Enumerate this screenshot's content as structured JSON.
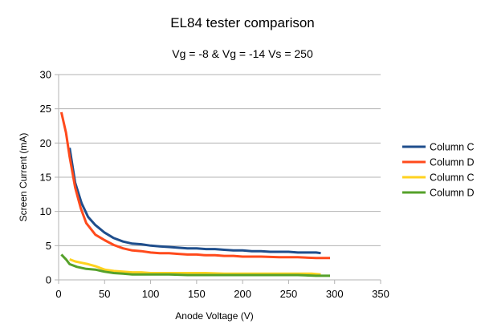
{
  "chart_data": {
    "type": "line",
    "title": "EL84 tester comparison",
    "subtitle": "Vg = -8 & Vg = -14 Vs = 250",
    "xlabel": "Anode Voltage (V)",
    "ylabel": "Screen Current (mA)",
    "xlim": [
      0,
      350
    ],
    "ylim": [
      0,
      30
    ],
    "x_ticks": [
      0,
      50,
      100,
      150,
      200,
      250,
      300,
      350
    ],
    "y_ticks": [
      0,
      5,
      10,
      15,
      20,
      25,
      30
    ],
    "x_tick_labels": [
      "0",
      "50",
      "100",
      "150",
      "200",
      "250",
      "300",
      "350"
    ],
    "y_tick_labels": [
      "0",
      "5",
      "10",
      "15",
      "20",
      "25",
      "30"
    ],
    "grid": "horizontal",
    "legend_position": "right",
    "series": [
      {
        "name": "Column C",
        "color": "#1f4e8c",
        "x": [
          12,
          18,
          25,
          32,
          40,
          50,
          60,
          70,
          80,
          90,
          100,
          110,
          120,
          130,
          140,
          150,
          160,
          170,
          180,
          190,
          200,
          210,
          220,
          230,
          240,
          250,
          260,
          270,
          280,
          285
        ],
        "y": [
          19.3,
          14.2,
          11.2,
          9.2,
          8.0,
          6.9,
          6.1,
          5.6,
          5.3,
          5.2,
          5.0,
          4.9,
          4.8,
          4.7,
          4.6,
          4.6,
          4.5,
          4.5,
          4.4,
          4.3,
          4.3,
          4.2,
          4.2,
          4.1,
          4.1,
          4.1,
          4.0,
          4.0,
          4.0,
          3.9
        ]
      },
      {
        "name": "Column D",
        "color": "#ff4a1c",
        "x": [
          3,
          8,
          12,
          18,
          24,
          30,
          40,
          50,
          60,
          70,
          80,
          90,
          100,
          110,
          120,
          130,
          140,
          150,
          160,
          170,
          180,
          190,
          200,
          220,
          240,
          260,
          280,
          295
        ],
        "y": [
          24.5,
          21.5,
          18.0,
          13.5,
          10.5,
          8.3,
          6.6,
          5.8,
          5.1,
          4.6,
          4.3,
          4.2,
          4.0,
          3.9,
          3.9,
          3.8,
          3.7,
          3.7,
          3.6,
          3.6,
          3.5,
          3.5,
          3.4,
          3.4,
          3.3,
          3.3,
          3.2,
          3.2
        ]
      },
      {
        "name": "Column C",
        "color": "#ffd21f",
        "x": [
          12,
          18,
          25,
          32,
          40,
          50,
          60,
          70,
          80,
          90,
          100,
          120,
          140,
          160,
          180,
          200,
          220,
          240,
          260,
          275,
          285
        ],
        "y": [
          3.0,
          2.7,
          2.5,
          2.3,
          2.0,
          1.5,
          1.3,
          1.2,
          1.1,
          1.1,
          1.0,
          1.0,
          1.0,
          1.0,
          0.9,
          0.9,
          0.9,
          0.9,
          0.9,
          0.9,
          0.8
        ]
      },
      {
        "name": "Column D",
        "color": "#55a12a",
        "x": [
          3,
          8,
          12,
          20,
          30,
          40,
          50,
          60,
          70,
          80,
          100,
          120,
          140,
          160,
          180,
          200,
          220,
          240,
          260,
          280,
          295
        ],
        "y": [
          3.7,
          3.0,
          2.3,
          1.9,
          1.6,
          1.5,
          1.2,
          1.0,
          0.9,
          0.8,
          0.8,
          0.8,
          0.7,
          0.7,
          0.7,
          0.7,
          0.7,
          0.7,
          0.7,
          0.6,
          0.6
        ]
      }
    ]
  },
  "colors": {
    "gridline": "#b3b3b3",
    "axis": "#b3b3b3",
    "background": "#ffffff"
  }
}
